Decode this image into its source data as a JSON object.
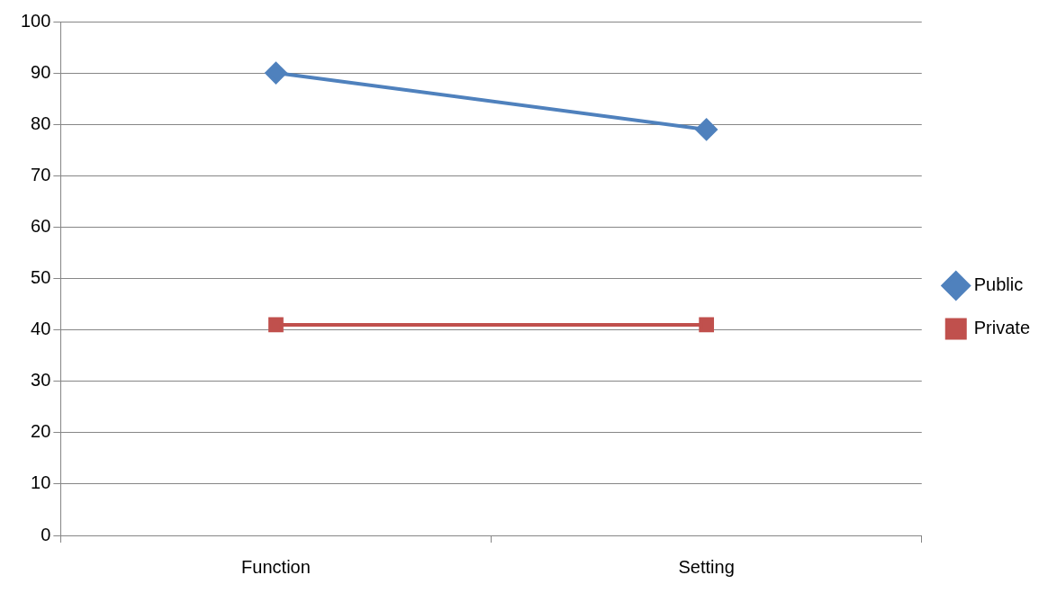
{
  "chart_data": {
    "type": "line",
    "categories": [
      "Function",
      "Setting"
    ],
    "series": [
      {
        "name": "Public",
        "color": "#4f81bd",
        "values": [
          90,
          79
        ],
        "marker": "diamond"
      },
      {
        "name": "Private",
        "color": "#c0504d",
        "values": [
          41,
          41
        ],
        "marker": "square"
      }
    ],
    "ylim": [
      0,
      100
    ],
    "yticks": [
      0,
      10,
      20,
      30,
      40,
      50,
      60,
      70,
      80,
      90,
      100
    ],
    "grid": "y",
    "legend": "right",
    "line_style": "solid"
  }
}
